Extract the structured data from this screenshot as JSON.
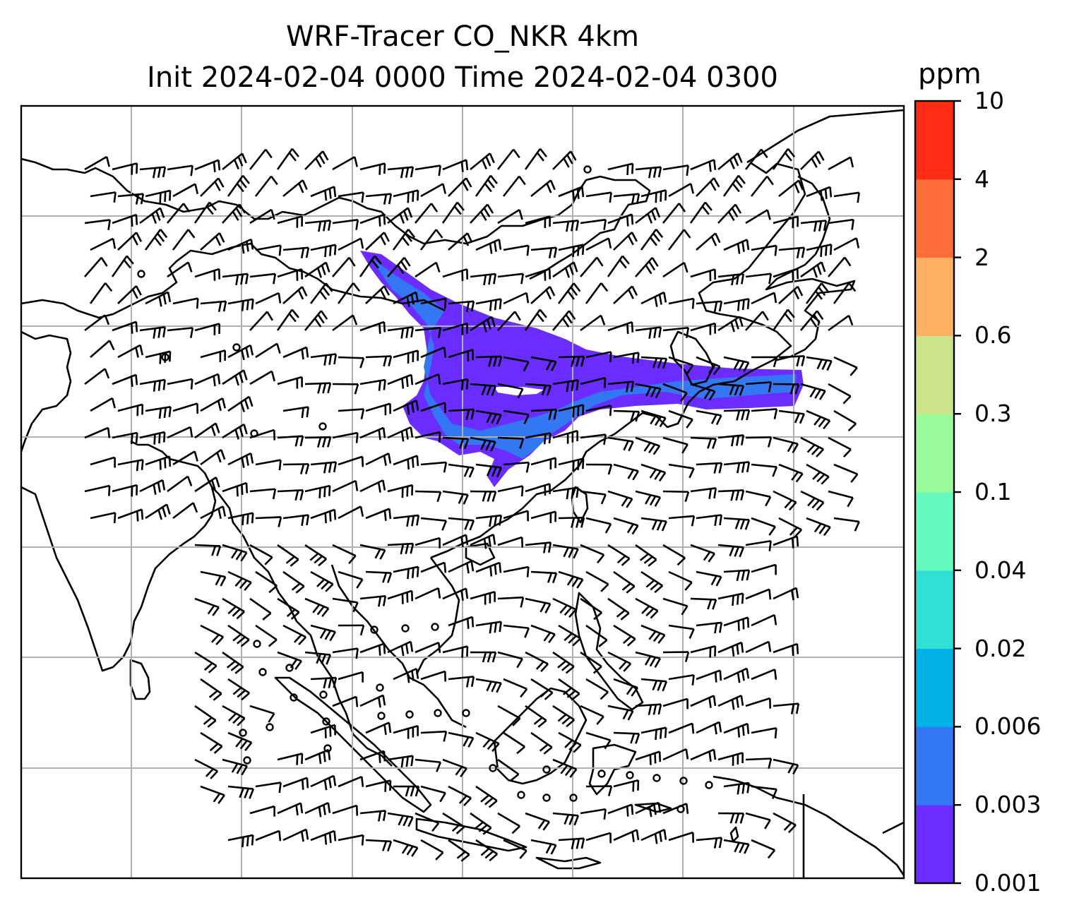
{
  "title": {
    "line1": "WRF-Tracer CO_NKR 4km",
    "line2": "Init 2024-02-04 0000 Time 2024-02-04 0300"
  },
  "colorbar": {
    "unit": "ppm",
    "levels": [
      "0.001",
      "0.003",
      "0.006",
      "0.02",
      "0.04",
      "0.1",
      "0.3",
      "0.6",
      "2",
      "4",
      "10"
    ],
    "colors": [
      "#6a2cff",
      "#3377f2",
      "#00b2e8",
      "#30e0d4",
      "#66fbbe",
      "#9afb9a",
      "#cde38a",
      "#fdb062",
      "#fe6e3a",
      "#fe2c15"
    ]
  },
  "map": {
    "gridlines": true,
    "plume_colors": [
      "#6a2cff",
      "#3377f2"
    ]
  }
}
